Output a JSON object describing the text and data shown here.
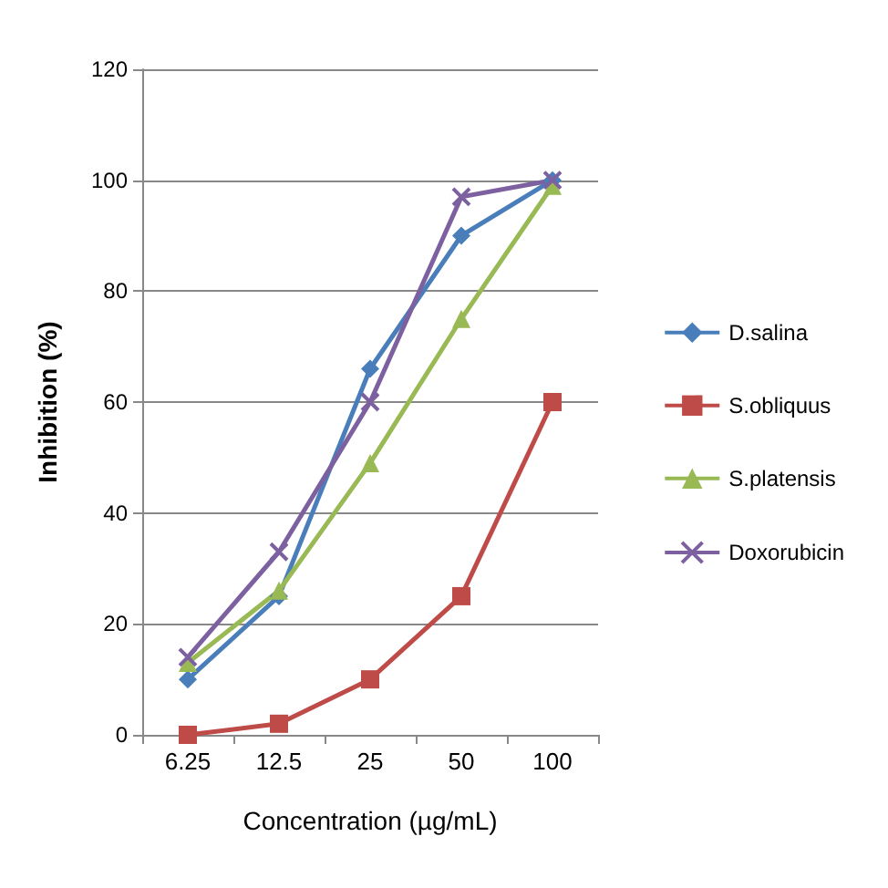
{
  "chart_data": {
    "type": "line",
    "xlabel": "Concentration (µg/mL)",
    "ylabel": "Inhibition (%)",
    "categories": [
      "6.25",
      "12.5",
      "25",
      "50",
      "100"
    ],
    "series": [
      {
        "name": "D.salina",
        "color": "#4a7ebb",
        "marker": "diamond",
        "values": [
          10,
          25,
          66,
          90,
          100
        ]
      },
      {
        "name": "S.obliquus",
        "color": "#be4b48",
        "marker": "square",
        "values": [
          0,
          2,
          10,
          25,
          60
        ]
      },
      {
        "name": "S.platensis",
        "color": "#98b954",
        "marker": "triangle",
        "values": [
          13,
          26,
          49,
          75,
          99
        ]
      },
      {
        "name": "Doxorubicin",
        "color": "#7d60a0",
        "marker": "cross",
        "values": [
          14,
          33,
          60,
          97,
          100
        ]
      }
    ],
    "ylim": [
      0,
      120
    ],
    "yticks": [
      0,
      20,
      40,
      60,
      80,
      100,
      120
    ],
    "grid": "y",
    "legend": "right",
    "line_style": "solid"
  }
}
